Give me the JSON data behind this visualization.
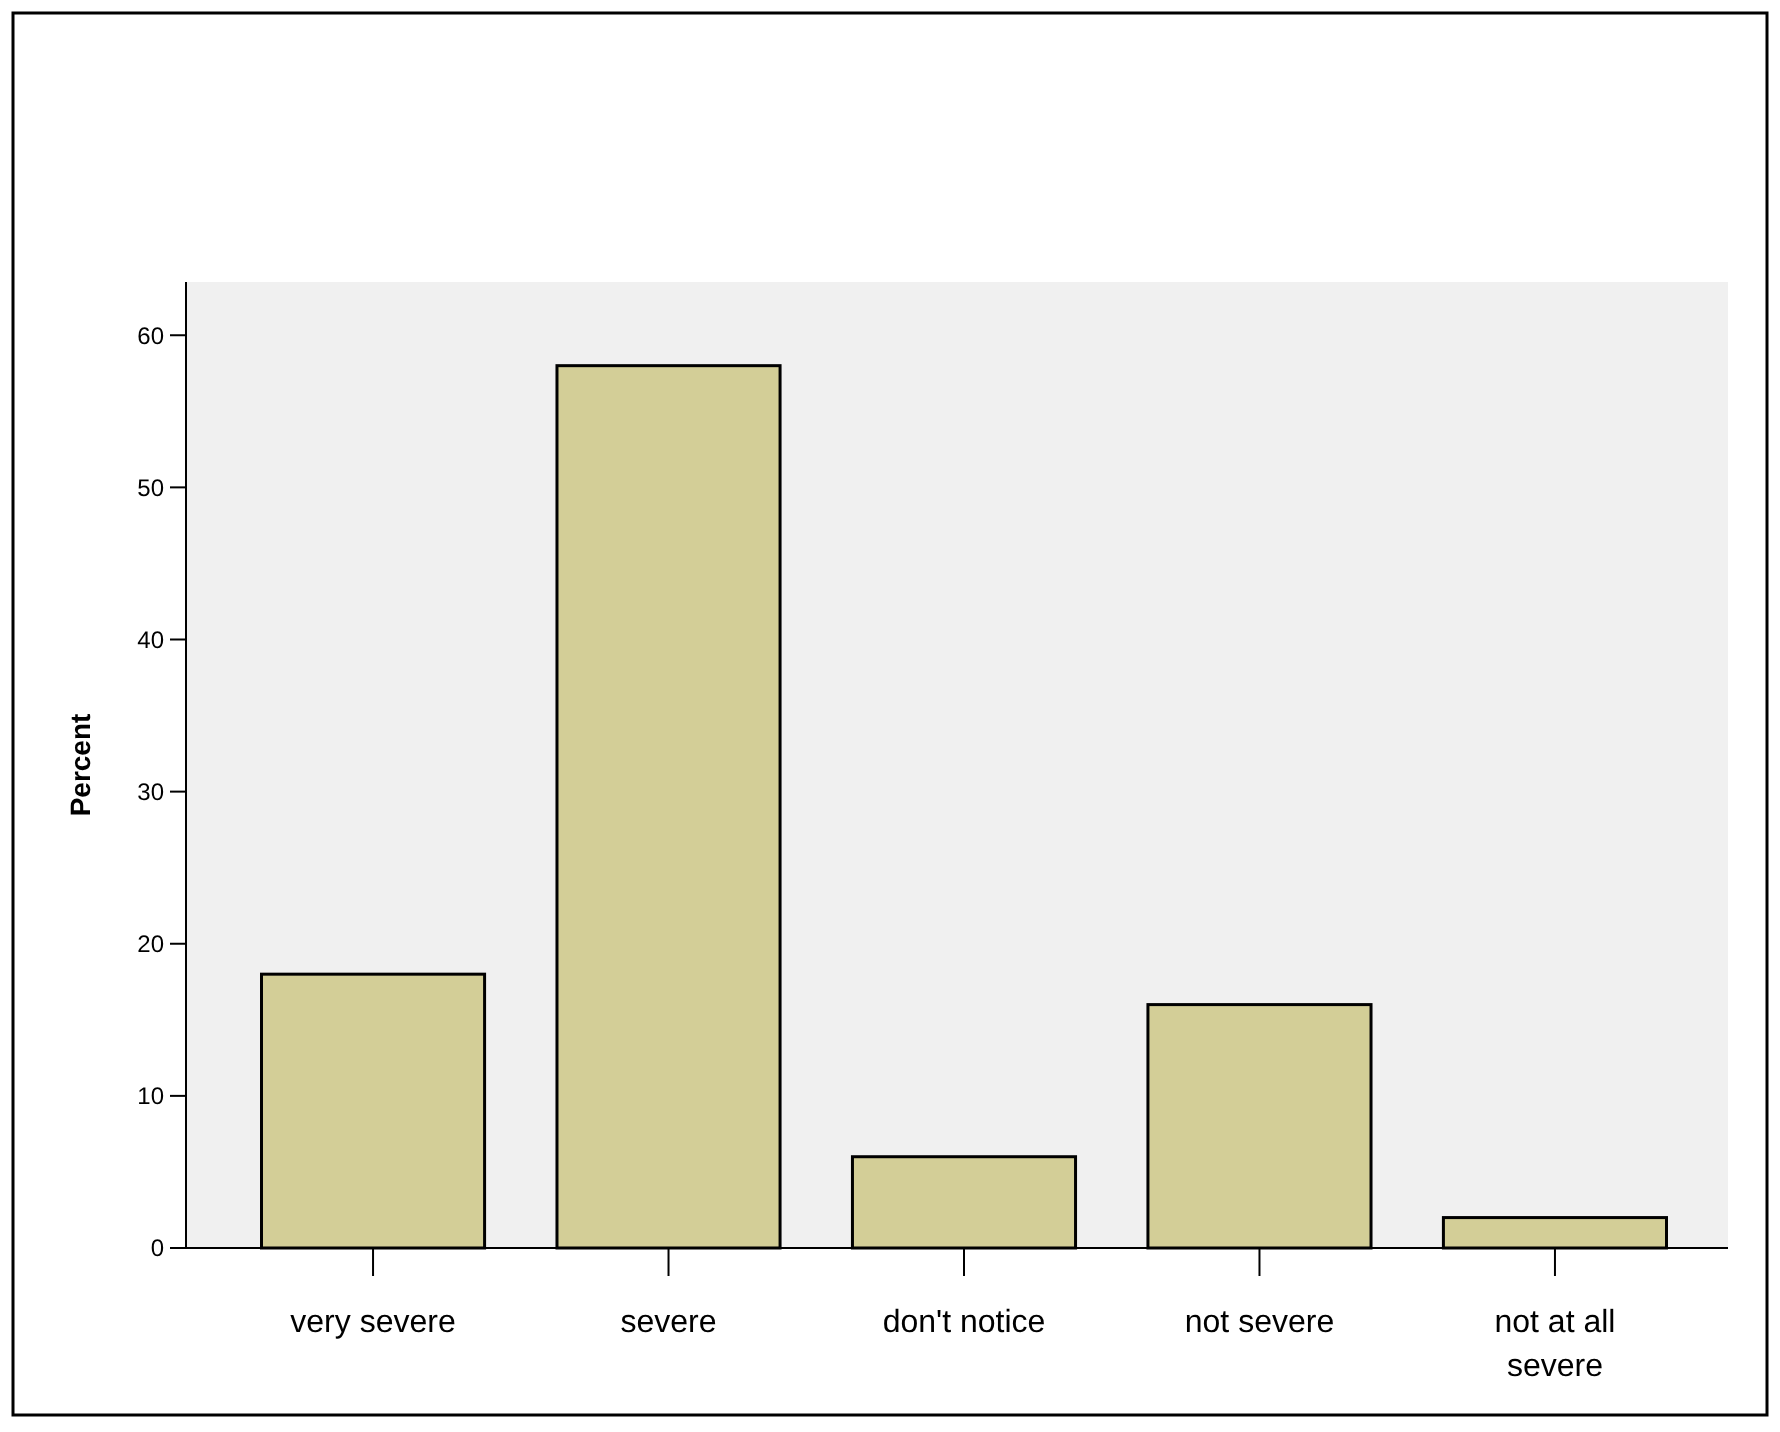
{
  "chart_data": {
    "type": "bar",
    "ylabel": "Percent",
    "categories": [
      "very severe",
      "severe",
      "don't notice",
      "not severe",
      "not at all severe"
    ],
    "values": [
      18,
      58,
      6,
      16,
      2
    ],
    "color": "#d3ce97",
    "ylim": [
      0,
      63.5
    ],
    "yticks": [
      0,
      10,
      20,
      30,
      40,
      50,
      60
    ],
    "grid": false
  }
}
